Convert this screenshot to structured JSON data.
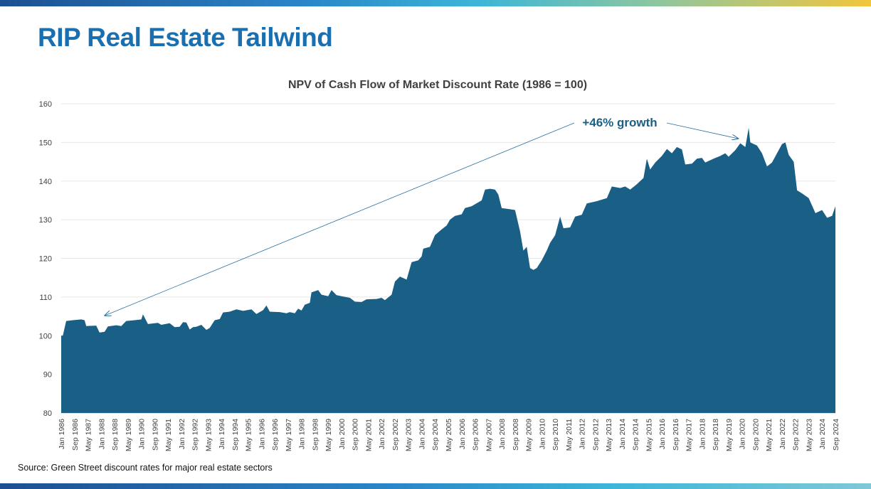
{
  "slide": {
    "title": "RIP Real Estate Tailwind",
    "source": "Source: Green Street discount rates for major real estate sectors"
  },
  "colors": {
    "title": "#1a6fb0",
    "area_fill": "#1a5f86",
    "annotation": "#1a5f86"
  },
  "chart_data": {
    "type": "area",
    "title": "NPV of Cash Flow of Market Discount Rate (1986 = 100)",
    "xlabel": "",
    "ylabel": "",
    "ylim": [
      80,
      160
    ],
    "yticks": [
      80,
      90,
      100,
      110,
      120,
      130,
      140,
      150,
      160
    ],
    "xlim": [
      "Jan 1986",
      "Sep 2024"
    ],
    "x_tick_labels": [
      "Jan 1986",
      "Sep 1986",
      "May 1987",
      "Jan 1988",
      "Sep 1988",
      "May 1989",
      "Jan 1990",
      "Sep 1990",
      "May 1991",
      "Jan 1992",
      "Sep 1992",
      "May 1993",
      "Jan 1994",
      "Sep 1994",
      "May 1995",
      "Jan 1996",
      "Sep 1996",
      "May 1997",
      "Jan 1998",
      "Sep 1998",
      "May 1999",
      "Jan 2000",
      "Sep 2000",
      "May 2001",
      "Jan 2002",
      "Sep 2002",
      "May 2003",
      "Jan 2004",
      "Sep 2004",
      "May 2005",
      "Jan 2006",
      "Sep 2006",
      "May 2007",
      "Jan 2008",
      "Sep 2008",
      "May 2009",
      "Jan 2010",
      "Sep 2010",
      "May 2011",
      "Jan 2012",
      "Sep 2012",
      "May 2013",
      "Jan 2014",
      "Sep 2014",
      "May 2015",
      "Jan 2016",
      "Sep 2016",
      "May 2017",
      "Jan 2018",
      "Sep 2018",
      "May 2019",
      "Jan 2020",
      "Sep 2020",
      "May 2021",
      "Jan 2022",
      "Sep 2022",
      "May 2023",
      "Jan 2024",
      "Sep 2024"
    ],
    "grid": true,
    "legend": "none",
    "annotation": {
      "text": "+46% growth",
      "from": "Jan 1988",
      "to": "Sep 2019"
    },
    "series": [
      {
        "points": [
          [
            "1986-01",
            100
          ],
          [
            "1986-02",
            100
          ],
          [
            "1986-04",
            103.8
          ],
          [
            "1986-08",
            104
          ],
          [
            "1987-01",
            104.2
          ],
          [
            "1987-03",
            104
          ],
          [
            "1987-04",
            102.5
          ],
          [
            "1987-10",
            102.6
          ],
          [
            "1987-12",
            100.8
          ],
          [
            "1988-03",
            101
          ],
          [
            "1988-05",
            102.4
          ],
          [
            "1988-10",
            102.7
          ],
          [
            "1989-01",
            102.5
          ],
          [
            "1989-04",
            103.8
          ],
          [
            "1989-09",
            104
          ],
          [
            "1990-01",
            104.2
          ],
          [
            "1990-02",
            105.5
          ],
          [
            "1990-05",
            103
          ],
          [
            "1990-11",
            103.3
          ],
          [
            "1991-01",
            102.8
          ],
          [
            "1991-06",
            103.2
          ],
          [
            "1991-09",
            102.2
          ],
          [
            "1991-12",
            102.3
          ],
          [
            "1992-02",
            103.5
          ],
          [
            "1992-04",
            103.4
          ],
          [
            "1992-06",
            101.6
          ],
          [
            "1992-08",
            102.2
          ],
          [
            "1992-10",
            102.3
          ],
          [
            "1993-01",
            102.8
          ],
          [
            "1993-04",
            101.5
          ],
          [
            "1993-06",
            102
          ],
          [
            "1993-09",
            104
          ],
          [
            "1993-12",
            104.3
          ],
          [
            "1994-02",
            106
          ],
          [
            "1994-06",
            106.2
          ],
          [
            "1994-10",
            106.8
          ],
          [
            "1995-02",
            106.4
          ],
          [
            "1995-07",
            106.8
          ],
          [
            "1995-10",
            105.6
          ],
          [
            "1996-02",
            106.6
          ],
          [
            "1996-04",
            107.8
          ],
          [
            "1996-06",
            106.2
          ],
          [
            "1996-12",
            106.1
          ],
          [
            "1997-04",
            105.8
          ],
          [
            "1997-06",
            106.1
          ],
          [
            "1997-09",
            105.8
          ],
          [
            "1997-11",
            107
          ],
          [
            "1998-01",
            106.5
          ],
          [
            "1998-03",
            108
          ],
          [
            "1998-06",
            108.5
          ],
          [
            "1998-07",
            111.2
          ],
          [
            "1998-11",
            111.8
          ],
          [
            "1999-01",
            110.6
          ],
          [
            "1999-05",
            110.2
          ],
          [
            "1999-07",
            111.8
          ],
          [
            "1999-10",
            110.5
          ],
          [
            "2000-01",
            110.2
          ],
          [
            "2000-06",
            109.8
          ],
          [
            "2000-09",
            108.8
          ],
          [
            "2001-01",
            108.7
          ],
          [
            "2001-04",
            109.4
          ],
          [
            "2001-10",
            109.5
          ],
          [
            "2002-01",
            109.8
          ],
          [
            "2002-03",
            109.2
          ],
          [
            "2002-07",
            110.6
          ],
          [
            "2002-09",
            114
          ],
          [
            "2002-12",
            115.3
          ],
          [
            "2003-04",
            114.5
          ],
          [
            "2003-07",
            119
          ],
          [
            "2003-11",
            119.5
          ],
          [
            "2004-01",
            120.5
          ],
          [
            "2004-02",
            122.5
          ],
          [
            "2004-06",
            123
          ],
          [
            "2004-09",
            126
          ],
          [
            "2005-01",
            127.5
          ],
          [
            "2005-04",
            128.5
          ],
          [
            "2005-06",
            130
          ],
          [
            "2005-09",
            131
          ],
          [
            "2006-01",
            131.4
          ],
          [
            "2006-03",
            133
          ],
          [
            "2006-07",
            133.5
          ],
          [
            "2006-09",
            134
          ],
          [
            "2007-01",
            135
          ],
          [
            "2007-03",
            137.8
          ],
          [
            "2007-06",
            138
          ],
          [
            "2007-09",
            137.8
          ],
          [
            "2007-11",
            136.5
          ],
          [
            "2008-01",
            133
          ],
          [
            "2008-06",
            132.7
          ],
          [
            "2008-09",
            132.5
          ],
          [
            "2008-12",
            127
          ],
          [
            "2009-02",
            122
          ],
          [
            "2009-04",
            123
          ],
          [
            "2009-06",
            117.5
          ],
          [
            "2009-08",
            117
          ],
          [
            "2009-10",
            117.5
          ],
          [
            "2010-01",
            119.5
          ],
          [
            "2010-04",
            122
          ],
          [
            "2010-06",
            124
          ],
          [
            "2010-09",
            126
          ],
          [
            "2010-12",
            130.8
          ],
          [
            "2011-02",
            127.8
          ],
          [
            "2011-06",
            128
          ],
          [
            "2011-09",
            130.8
          ],
          [
            "2012-01",
            131.3
          ],
          [
            "2012-04",
            134.2
          ],
          [
            "2012-10",
            134.8
          ],
          [
            "2013-01",
            135.2
          ],
          [
            "2013-04",
            135.6
          ],
          [
            "2013-07",
            138.6
          ],
          [
            "2013-12",
            138.2
          ],
          [
            "2014-03",
            138.6
          ],
          [
            "2014-06",
            137.8
          ],
          [
            "2014-10",
            139.2
          ],
          [
            "2015-02",
            140.8
          ],
          [
            "2015-04",
            145.8
          ],
          [
            "2015-06",
            143
          ],
          [
            "2015-09",
            144.8
          ],
          [
            "2016-01",
            146.5
          ],
          [
            "2016-04",
            148.3
          ],
          [
            "2016-07",
            147.2
          ],
          [
            "2016-10",
            148.8
          ],
          [
            "2017-01",
            148.2
          ],
          [
            "2017-03",
            144.3
          ],
          [
            "2017-07",
            144.5
          ],
          [
            "2017-10",
            145.8
          ],
          [
            "2018-01",
            146
          ],
          [
            "2018-03",
            144.8
          ],
          [
            "2018-08",
            145.8
          ],
          [
            "2018-12",
            146.5
          ],
          [
            "2019-03",
            147.2
          ],
          [
            "2019-05",
            146.3
          ],
          [
            "2019-09",
            148
          ],
          [
            "2019-12",
            149.8
          ],
          [
            "2020-03",
            148.8
          ],
          [
            "2020-05",
            153.8
          ],
          [
            "2020-06",
            150
          ],
          [
            "2020-10",
            149.2
          ],
          [
            "2021-01",
            147.2
          ],
          [
            "2021-04",
            143.8
          ],
          [
            "2021-07",
            144.8
          ],
          [
            "2021-10",
            147.2
          ],
          [
            "2022-01",
            149.6
          ],
          [
            "2022-03",
            150
          ],
          [
            "2022-05",
            146.8
          ],
          [
            "2022-08",
            145
          ],
          [
            "2022-10",
            137.6
          ],
          [
            "2023-01",
            136.8
          ],
          [
            "2023-05",
            135.6
          ],
          [
            "2023-09",
            131.7
          ],
          [
            "2024-01",
            132.5
          ],
          [
            "2024-04",
            130.5
          ],
          [
            "2024-07",
            131
          ],
          [
            "2024-09",
            133.5
          ]
        ]
      }
    ]
  }
}
